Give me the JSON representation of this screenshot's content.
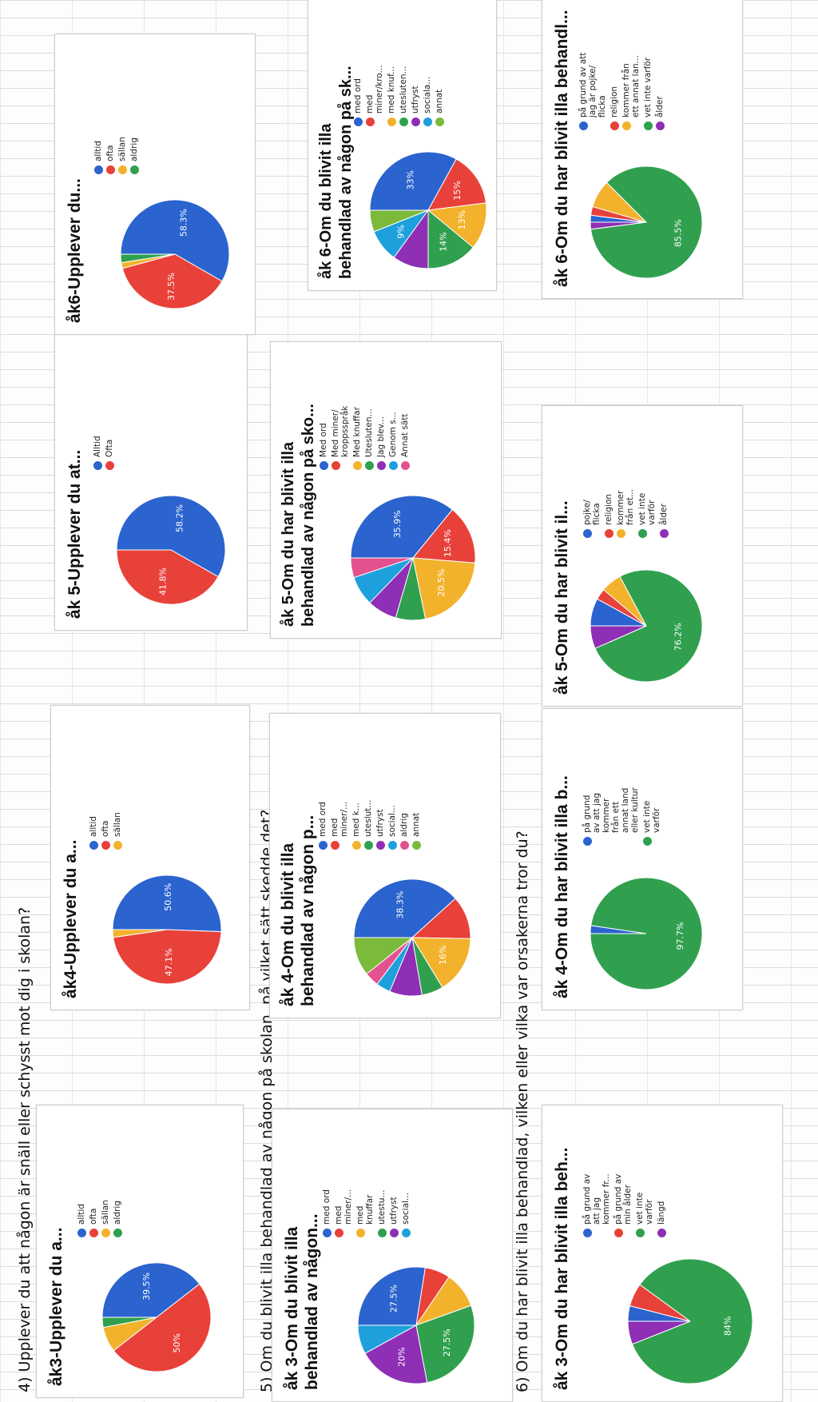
{
  "questions": {
    "q4": "4) Upplever du att någon är snäll eller schysst mot dig i skolan?",
    "q5": "5) Om du blivit illa behandlad av någon på skolan, på vilket sätt skedde det?",
    "q6": "6) Om du har blivit illa behandlad, vilken eller vilka var orsakerna tror du?"
  },
  "chart_data": [
    {
      "type": "pie",
      "title": "åk3-Upplever du a...",
      "categories": [
        "alltid",
        "ofta",
        "sällan",
        "aldrig"
      ],
      "values": [
        39.5,
        50,
        7.5,
        3
      ],
      "colors": [
        "#2b63cf",
        "#e8413a",
        "#f3b22c",
        "#30a04f"
      ],
      "labels": [
        "39.5%",
        "50%",
        "",
        ""
      ]
    },
    {
      "type": "pie",
      "title": "åk4-Upplever du a...",
      "categories": [
        "alltid",
        "ofta",
        "sällan"
      ],
      "values": [
        50.6,
        47.1,
        2.3
      ],
      "colors": [
        "#2b63cf",
        "#e8413a",
        "#f3b22c"
      ],
      "labels": [
        "50.6%",
        "47.1%",
        ""
      ]
    },
    {
      "type": "pie",
      "title": "åk 5-Upplever du at...",
      "categories": [
        "Alltid",
        "Ofta"
      ],
      "values": [
        58.2,
        41.8
      ],
      "colors": [
        "#2b63cf",
        "#e8413a"
      ],
      "labels": [
        "58.2%",
        "41.8%"
      ]
    },
    {
      "type": "pie",
      "title": "åk6-Upplever du...",
      "categories": [
        "alltid",
        "ofta",
        "sällan",
        "aldrig"
      ],
      "values": [
        58.3,
        37.5,
        1.7,
        2.5
      ],
      "colors": [
        "#2b63cf",
        "#e8413a",
        "#f3b22c",
        "#30a04f"
      ],
      "labels": [
        "58.3%",
        "37.5%",
        "",
        ""
      ]
    },
    {
      "type": "pie",
      "title": "åk 3-Om du blivit illa\nbehandlad av någon...",
      "categories": [
        "med ord",
        "med\nminer/...",
        "med\nknuffar",
        "utestu...",
        "utfryst",
        "social..."
      ],
      "values": [
        27.5,
        7,
        10,
        27.5,
        20,
        8
      ],
      "colors": [
        "#2b63cf",
        "#e8413a",
        "#f3b22c",
        "#30a04f",
        "#8e2fb5",
        "#1ea0dc"
      ],
      "labels": [
        "27.5%",
        "",
        "",
        "27.5%",
        "20%",
        ""
      ]
    },
    {
      "type": "pie",
      "title": "åk 4-Om du blivit illa\nbehandlad av någon p...",
      "categories": [
        "med ord",
        "med\nminer/...",
        "med k...",
        "uteslut...",
        "utfryst",
        "social...",
        "aldrig",
        "annat"
      ],
      "values": [
        38.3,
        12,
        16,
        6,
        9,
        4,
        4,
        10.7
      ],
      "colors": [
        "#2b63cf",
        "#e8413a",
        "#f3b22c",
        "#30a04f",
        "#8e2fb5",
        "#1ea0dc",
        "#e3528f",
        "#7bba3a"
      ],
      "labels": [
        "38.3%",
        "",
        "16%",
        "",
        "",
        "",
        "",
        ""
      ]
    },
    {
      "type": "pie",
      "title": "åk 5-Om du har blivit illa\nbehandlad av någon på sko...",
      "categories": [
        "Med ord",
        "Med miner/\nkroppsspråk",
        "Med knuffar",
        "Utesluten...",
        "Jag blev...",
        "Genom s...",
        "Annat sätt"
      ],
      "values": [
        35.9,
        15.4,
        20.5,
        7.7,
        7.7,
        7.7,
        5.1
      ],
      "colors": [
        "#2b63cf",
        "#e8413a",
        "#f3b22c",
        "#30a04f",
        "#8e2fb5",
        "#1ea0dc",
        "#e3528f"
      ],
      "labels": [
        "35.9%",
        "15.4%",
        "20.5%",
        "",
        "",
        "",
        ""
      ]
    },
    {
      "type": "pie",
      "title": "åk 6-Om du blivit illa\nbehandlad av någon på sk...",
      "categories": [
        "med ord",
        "med\nminer/kro...",
        "med knuf...",
        "utesluten...",
        "utfryst",
        "sociala...",
        "annat"
      ],
      "values": [
        33,
        15,
        13,
        14,
        10,
        9,
        6
      ],
      "colors": [
        "#2b63cf",
        "#e8413a",
        "#f3b22c",
        "#30a04f",
        "#8e2fb5",
        "#1ea0dc",
        "#7bba3a"
      ],
      "labels": [
        "33%",
        "15%",
        "13%",
        "14%",
        "",
        "9%",
        ""
      ]
    },
    {
      "type": "pie",
      "title": "åk 3-Om du har blivit illa beh...",
      "categories": [
        "på grund av\natt jag\nkommer fr...",
        "på grund av\nmin ålder",
        "vet inte\nvarför",
        "längd"
      ],
      "values": [
        4,
        6,
        84,
        6
      ],
      "colors": [
        "#2b63cf",
        "#e8413a",
        "#30a04f",
        "#8e2fb5"
      ],
      "labels": [
        "",
        "",
        "84%",
        ""
      ]
    },
    {
      "type": "pie",
      "title": "åk 4-Om du har blivit illa b...",
      "categories": [
        "på grund\nav att jag\nkommer\nfrån ett\nannat land\neller kultur",
        "vet inte\nvarför"
      ],
      "values": [
        2.3,
        97.7
      ],
      "colors": [
        "#2b63cf",
        "#30a04f"
      ],
      "labels": [
        "",
        "97.7%"
      ]
    },
    {
      "type": "pie",
      "title": "åk 5-Om du har blivit il...",
      "categories": [
        "pojke/\nflicka",
        "religion",
        "kommer\nfrån et...",
        "vet inte\nvarför",
        "ålder"
      ],
      "values": [
        8,
        3.2,
        6,
        76.2,
        6.6
      ],
      "colors": [
        "#2b63cf",
        "#e8413a",
        "#f3b22c",
        "#30a04f",
        "#8e2fb5"
      ],
      "labels": [
        "",
        "",
        "",
        "76.2%",
        ""
      ]
    },
    {
      "type": "pie",
      "title": "åk 6-Om du har blivit illa behandl...",
      "categories": [
        "på grund av att\njag är pojke/\nflicka",
        "religion",
        "kommer från\nett annat lan...",
        "vet inte varför",
        "ålder"
      ],
      "values": [
        2,
        2.5,
        8,
        85.5,
        2
      ],
      "colors": [
        "#2b63cf",
        "#e8413a",
        "#f3b22c",
        "#30a04f",
        "#8e2fb5"
      ],
      "labels": [
        "",
        "",
        "",
        "85.5%",
        ""
      ]
    }
  ]
}
